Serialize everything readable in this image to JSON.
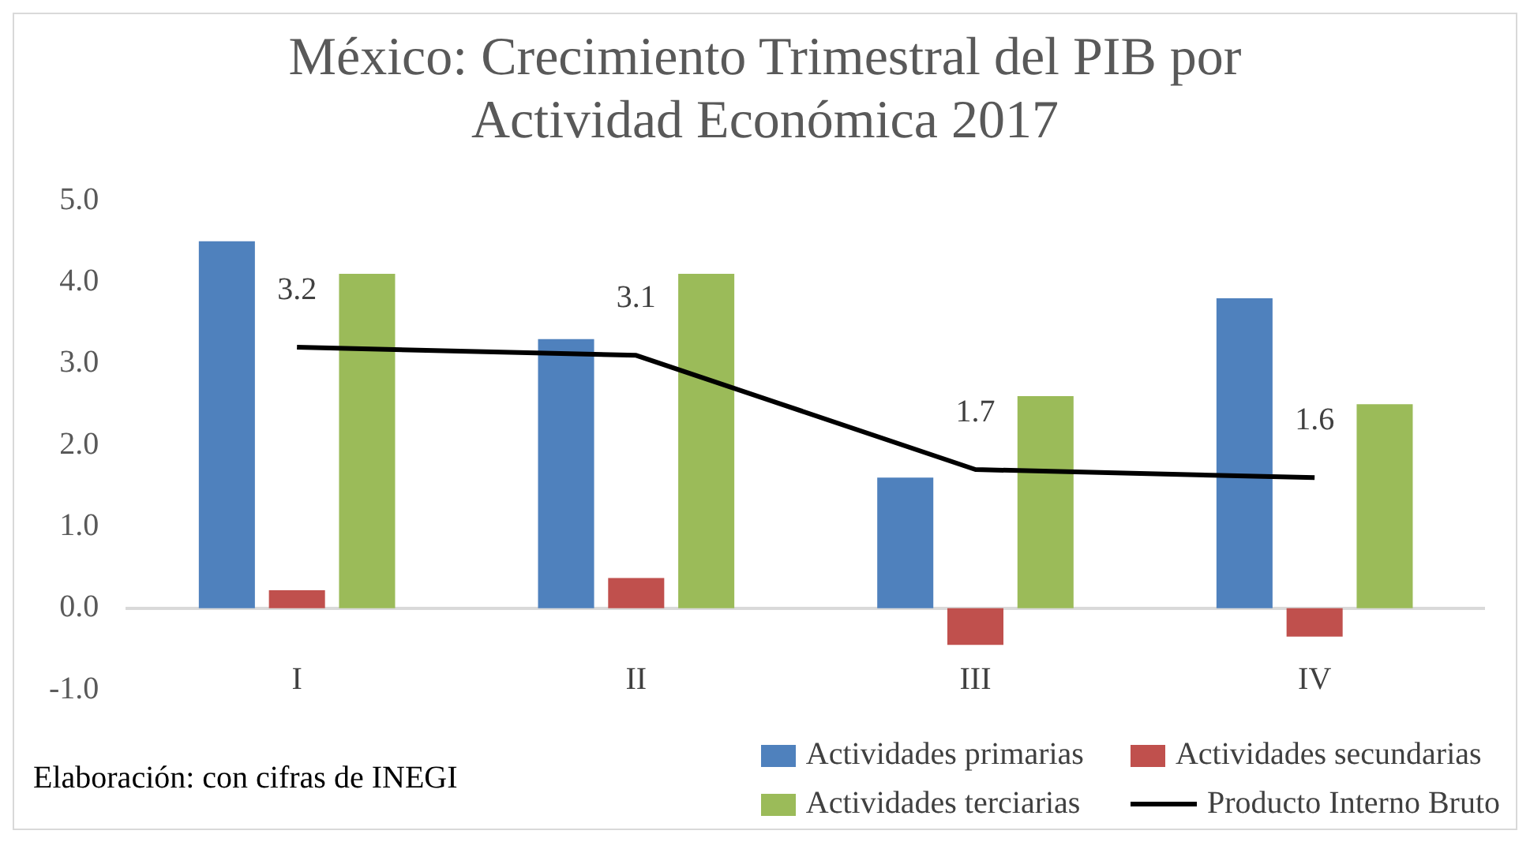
{
  "chart_data": {
    "type": "bar",
    "title": "México: Crecimiento Trimestral del PIB por Actividad Económica 2017",
    "categories": [
      "I",
      "II",
      "III",
      "IV"
    ],
    "series": [
      {
        "name": "Actividades primarias",
        "color": "#4f81bd",
        "values": [
          4.5,
          3.3,
          1.6,
          3.8
        ]
      },
      {
        "name": "Actividades secundarias",
        "color": "#c0504d",
        "values": [
          0.22,
          0.37,
          -0.45,
          -0.35
        ]
      },
      {
        "name": "Actividades terciarias",
        "color": "#9bbb59",
        "values": [
          4.1,
          4.1,
          2.6,
          2.5
        ]
      },
      {
        "name": "Producto Interno Bruto",
        "type": "line",
        "color": "#000000",
        "values": [
          3.2,
          3.1,
          1.7,
          1.6
        ],
        "value_labels": [
          "3.2",
          "3.1",
          "1.7",
          "1.6"
        ]
      }
    ],
    "ylim": [
      -1,
      5
    ],
    "yticks": [
      {
        "value": -1,
        "label": "-1.0"
      },
      {
        "value": 0,
        "label": "0.0"
      },
      {
        "value": 1,
        "label": "1.0"
      },
      {
        "value": 2,
        "label": "2.0"
      },
      {
        "value": 3,
        "label": "3.0"
      },
      {
        "value": 4,
        "label": "4.0"
      },
      {
        "value": 5,
        "label": "5.0"
      }
    ],
    "grid": false,
    "legend": "bottom right",
    "annotations": [
      "Elaboración: con cifras de INEGI"
    ]
  }
}
